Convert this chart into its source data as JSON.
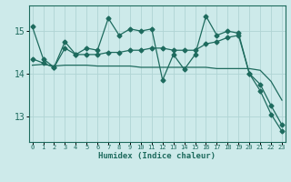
{
  "title": "",
  "xlabel": "Humidex (Indice chaleur)",
  "ylabel": "",
  "bg_color": "#cdeaea",
  "line_color": "#1e6b5e",
  "grid_color": "#b0d4d4",
  "x_ticks": [
    0,
    1,
    2,
    3,
    4,
    5,
    6,
    7,
    8,
    9,
    10,
    11,
    12,
    13,
    14,
    15,
    16,
    17,
    18,
    19,
    20,
    21,
    22,
    23
  ],
  "y_ticks": [
    13,
    14,
    15
  ],
  "ylim": [
    12.4,
    15.6
  ],
  "xlim": [
    -0.3,
    23.3
  ],
  "series1_y": [
    15.1,
    14.35,
    14.15,
    14.75,
    14.45,
    14.6,
    14.55,
    15.3,
    14.9,
    15.05,
    15.0,
    15.05,
    13.85,
    14.45,
    14.1,
    14.45,
    15.35,
    14.9,
    15.0,
    14.95,
    14.0,
    13.6,
    13.05,
    12.65
  ],
  "series2_y": [
    14.35,
    14.25,
    14.15,
    14.6,
    14.45,
    14.45,
    14.45,
    14.5,
    14.5,
    14.55,
    14.55,
    14.6,
    14.6,
    14.55,
    14.55,
    14.55,
    14.7,
    14.75,
    14.85,
    14.9,
    14.0,
    13.75,
    13.25,
    12.8
  ],
  "series3_y": [
    14.2,
    14.22,
    14.18,
    14.2,
    14.2,
    14.2,
    14.18,
    14.18,
    14.18,
    14.18,
    14.15,
    14.15,
    14.15,
    14.15,
    14.15,
    14.15,
    14.15,
    14.12,
    14.12,
    14.12,
    14.12,
    14.08,
    13.82,
    13.38
  ]
}
